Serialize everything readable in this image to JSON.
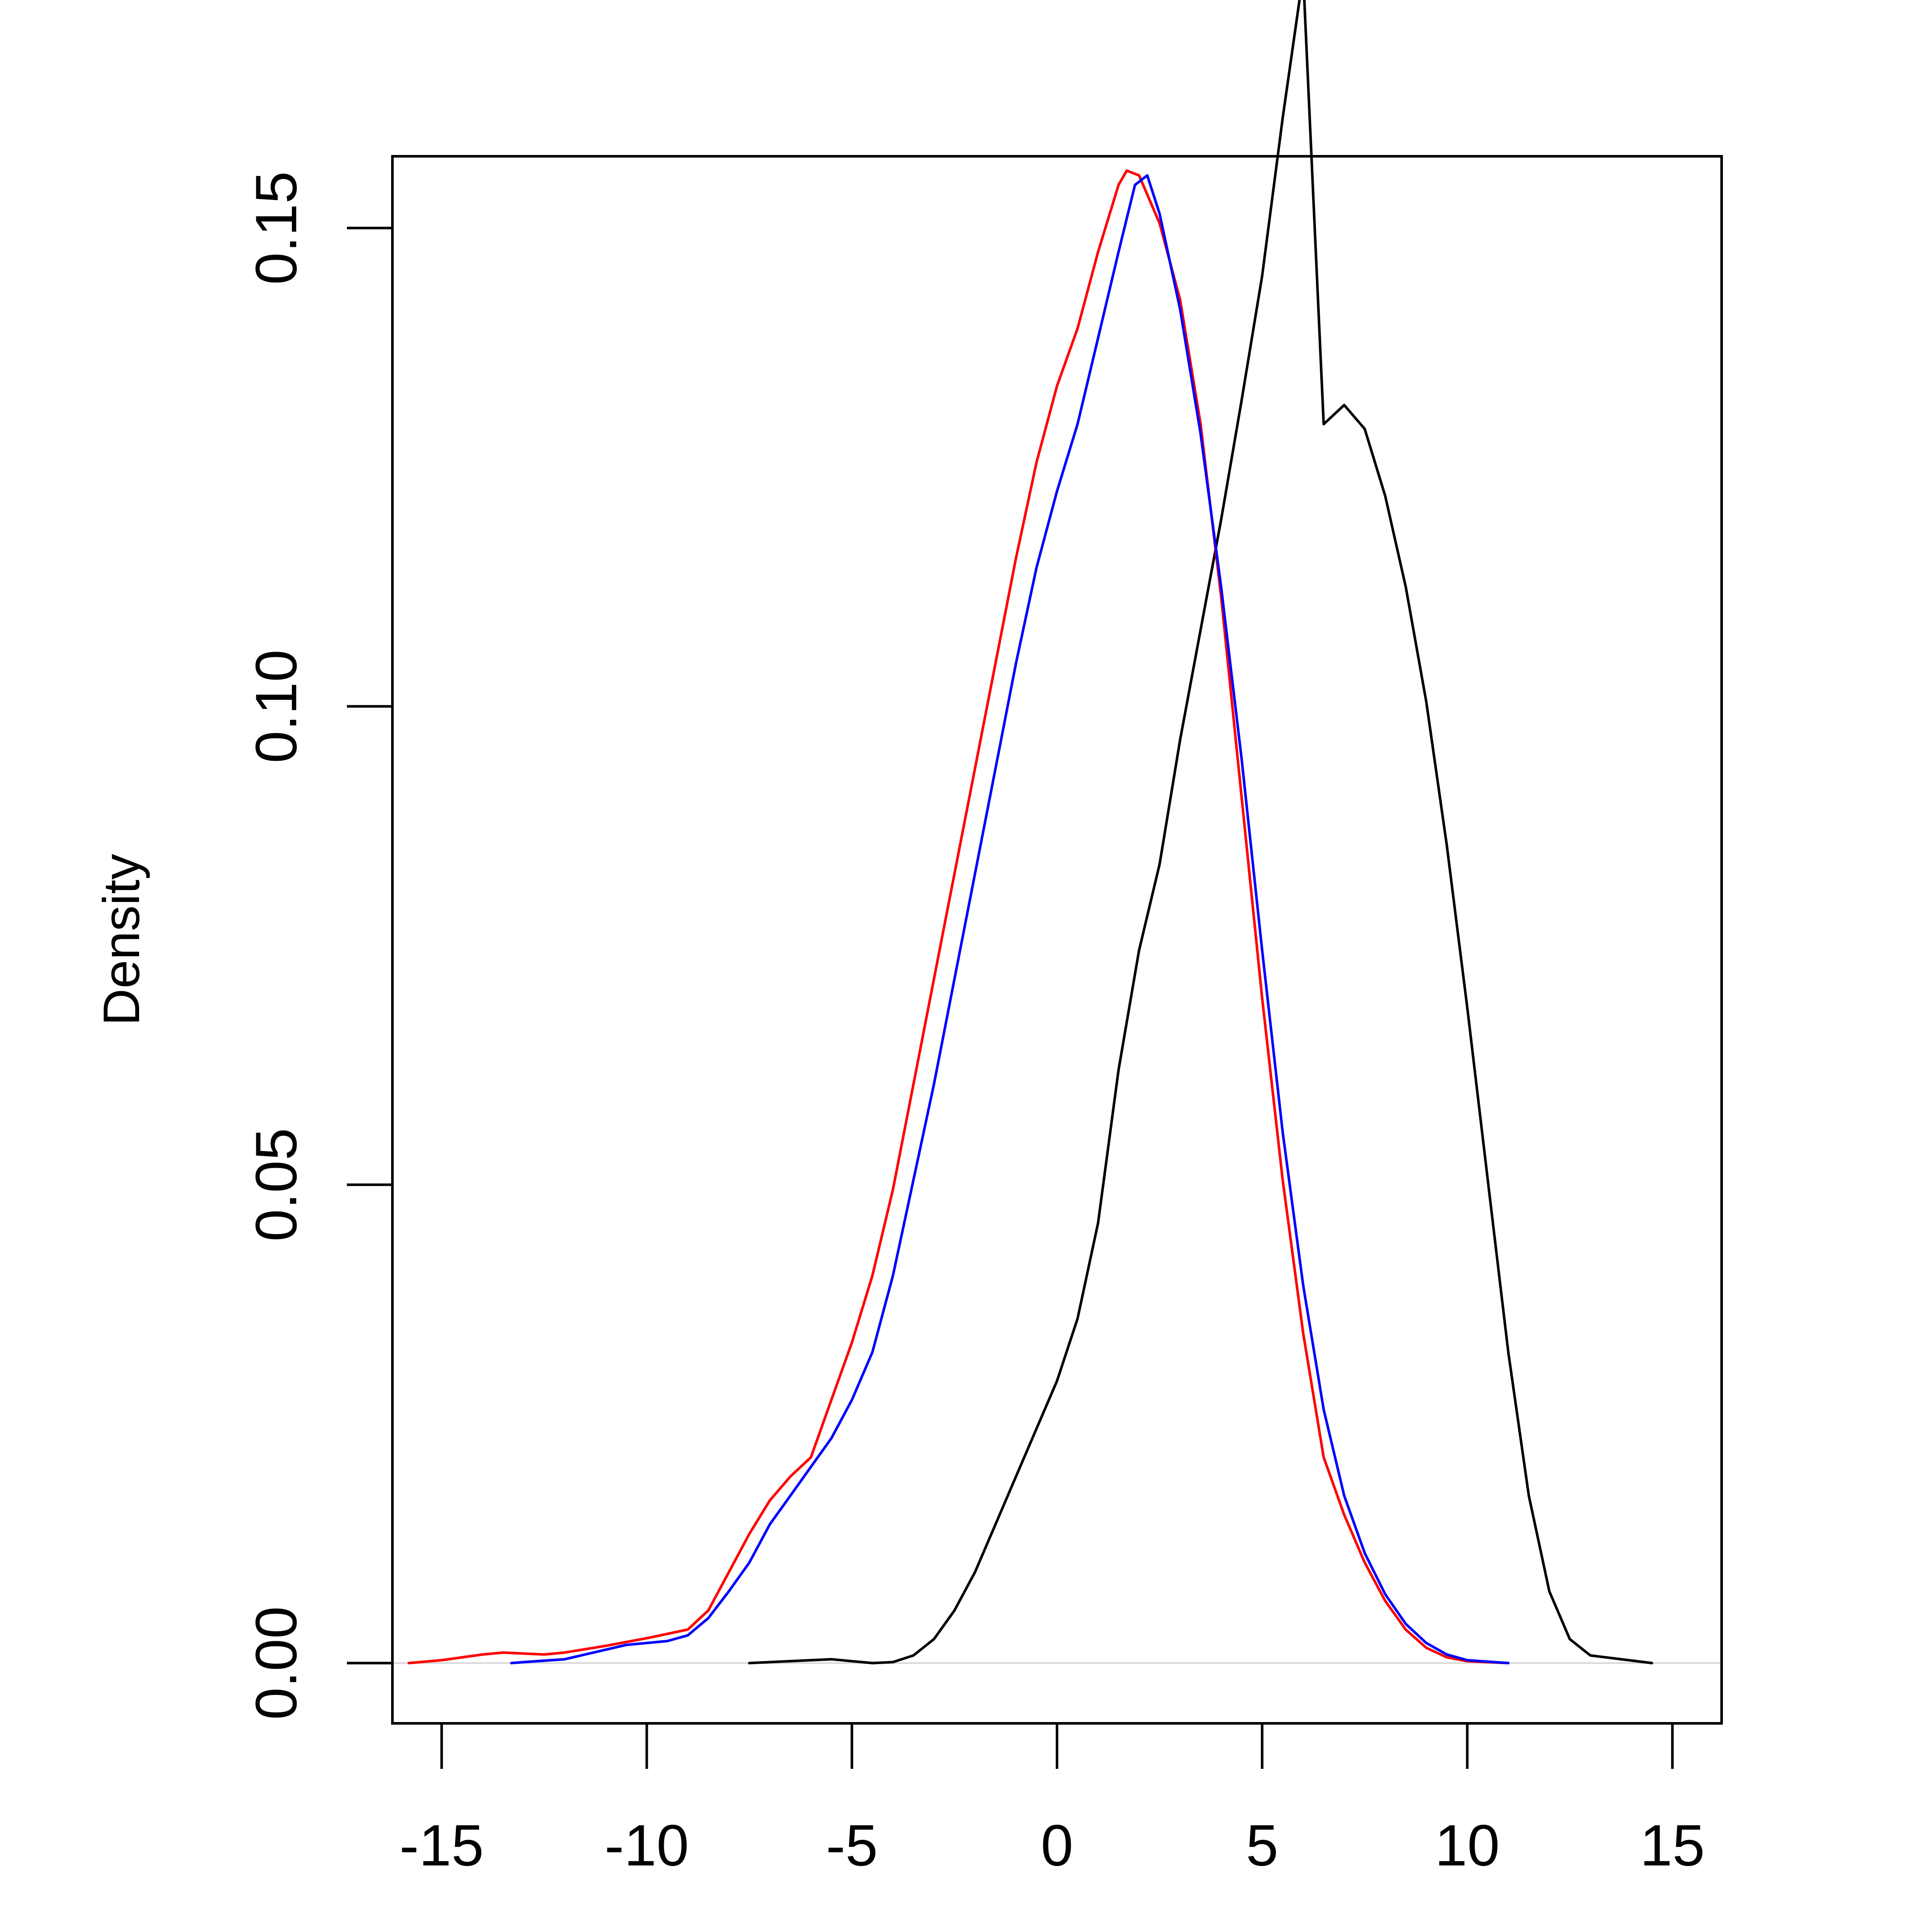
{
  "chart_data": {
    "type": "line",
    "title": "",
    "xlabel": "",
    "ylabel": "Density",
    "xlim": [
      -16.2,
      16.2
    ],
    "ylim": [
      -0.0063,
      0.1575
    ],
    "x_ticks": [
      -15,
      -10,
      -5,
      0,
      5,
      10,
      15
    ],
    "x_tick_labels": [
      "-15",
      "-10",
      "-5",
      "0",
      "5",
      "10",
      "15"
    ],
    "y_ticks": [
      0.0,
      0.05,
      0.1,
      0.15
    ],
    "y_tick_labels": [
      "0.00",
      "0.05",
      "0.10",
      "0.15"
    ],
    "grid": false,
    "legend": "none",
    "baseline": {
      "y": 0,
      "color": "#d9d9d9"
    },
    "series": [
      {
        "color": "#000000",
        "points": [
          [
            -7.5,
            0.0
          ],
          [
            -7.0,
            0.0001
          ],
          [
            -6.0,
            0.0003
          ],
          [
            -5.5,
            0.0004
          ],
          [
            -5.0,
            0.0002
          ],
          [
            -4.5,
            0.0
          ],
          [
            -4.0,
            0.0001
          ],
          [
            -3.5,
            0.0008
          ],
          [
            -3.0,
            0.0025
          ],
          [
            -2.5,
            0.0055
          ],
          [
            -2.0,
            0.0095
          ],
          [
            -1.5,
            0.0145
          ],
          [
            -1.0,
            0.0195
          ],
          [
            -0.5,
            0.0245
          ],
          [
            0.0,
            0.0295
          ],
          [
            0.5,
            0.036
          ],
          [
            1.0,
            0.046
          ],
          [
            1.5,
            0.062
          ],
          [
            2.0,
            0.0745
          ],
          [
            2.5,
            0.0835
          ],
          [
            3.0,
            0.0965
          ],
          [
            3.5,
            0.108
          ],
          [
            4.0,
            0.1195
          ],
          [
            4.5,
            0.132
          ],
          [
            5.0,
            0.145
          ],
          [
            5.5,
            0.1615
          ],
          [
            6.0,
            0.1765
          ],
          [
            6.5,
            0.1295
          ],
          [
            7.0,
            0.1315
          ],
          [
            7.5,
            0.129
          ],
          [
            8.0,
            0.122
          ],
          [
            8.5,
            0.1125
          ],
          [
            9.0,
            0.1005
          ],
          [
            9.5,
            0.0855
          ],
          [
            10.0,
            0.0685
          ],
          [
            10.5,
            0.0505
          ],
          [
            11.0,
            0.0325
          ],
          [
            11.5,
            0.0175
          ],
          [
            12.0,
            0.0075
          ],
          [
            12.5,
            0.0025
          ],
          [
            13.0,
            0.0008
          ],
          [
            14.5,
            0.0
          ]
        ]
      },
      {
        "color": "#ff0000",
        "points": [
          [
            -15.8,
            0.0
          ],
          [
            -15.0,
            0.0003
          ],
          [
            -14.0,
            0.0009
          ],
          [
            -13.5,
            0.0011
          ],
          [
            -12.5,
            0.0009
          ],
          [
            -12.0,
            0.0011
          ],
          [
            -11.0,
            0.0018
          ],
          [
            -10.0,
            0.0026
          ],
          [
            -9.0,
            0.0035
          ],
          [
            -8.5,
            0.0055
          ],
          [
            -8.0,
            0.0095
          ],
          [
            -7.5,
            0.0135
          ],
          [
            -7.0,
            0.017
          ],
          [
            -6.5,
            0.0195
          ],
          [
            -6.0,
            0.0215
          ],
          [
            -5.5,
            0.0275
          ],
          [
            -5.0,
            0.0335
          ],
          [
            -4.5,
            0.0405
          ],
          [
            -4.0,
            0.0495
          ],
          [
            -3.5,
            0.0605
          ],
          [
            -3.0,
            0.0715
          ],
          [
            -2.5,
            0.0825
          ],
          [
            -2.0,
            0.0935
          ],
          [
            -1.5,
            0.1045
          ],
          [
            -1.0,
            0.1155
          ],
          [
            -0.5,
            0.1255
          ],
          [
            0.0,
            0.1335
          ],
          [
            0.5,
            0.1395
          ],
          [
            1.0,
            0.1475
          ],
          [
            1.5,
            0.1545
          ],
          [
            1.7,
            0.156
          ],
          [
            2.0,
            0.1555
          ],
          [
            2.5,
            0.1505
          ],
          [
            3.0,
            0.1425
          ],
          [
            3.5,
            0.1295
          ],
          [
            4.0,
            0.1115
          ],
          [
            4.5,
            0.0905
          ],
          [
            5.0,
            0.0695
          ],
          [
            5.5,
            0.0505
          ],
          [
            6.0,
            0.0345
          ],
          [
            6.5,
            0.0215
          ],
          [
            7.0,
            0.0155
          ],
          [
            7.5,
            0.0105
          ],
          [
            8.0,
            0.0065
          ],
          [
            8.5,
            0.0035
          ],
          [
            9.0,
            0.0016
          ],
          [
            9.5,
            0.0006
          ],
          [
            10.0,
            0.0002
          ],
          [
            11.0,
            0.0
          ]
        ]
      },
      {
        "color": "#0000ff",
        "points": [
          [
            -13.3,
            0.0
          ],
          [
            -13.0,
            0.0001
          ],
          [
            -12.0,
            0.0004
          ],
          [
            -11.0,
            0.0014
          ],
          [
            -10.5,
            0.0019
          ],
          [
            -10.0,
            0.0021
          ],
          [
            -9.5,
            0.0023
          ],
          [
            -9.0,
            0.0029
          ],
          [
            -8.5,
            0.0047
          ],
          [
            -8.0,
            0.0075
          ],
          [
            -7.5,
            0.0105
          ],
          [
            -7.0,
            0.0145
          ],
          [
            -6.5,
            0.0175
          ],
          [
            -6.0,
            0.0205
          ],
          [
            -5.5,
            0.0235
          ],
          [
            -5.0,
            0.0275
          ],
          [
            -4.5,
            0.0325
          ],
          [
            -4.0,
            0.0405
          ],
          [
            -3.5,
            0.0505
          ],
          [
            -3.0,
            0.0605
          ],
          [
            -2.5,
            0.0715
          ],
          [
            -2.0,
            0.0825
          ],
          [
            -1.5,
            0.0935
          ],
          [
            -1.0,
            0.1045
          ],
          [
            -0.5,
            0.1145
          ],
          [
            0.0,
            0.1225
          ],
          [
            0.5,
            0.1295
          ],
          [
            1.0,
            0.1385
          ],
          [
            1.5,
            0.1475
          ],
          [
            1.9,
            0.1545
          ],
          [
            2.2,
            0.1555
          ],
          [
            2.5,
            0.1515
          ],
          [
            3.0,
            0.1415
          ],
          [
            3.5,
            0.1285
          ],
          [
            4.0,
            0.1125
          ],
          [
            4.5,
            0.0945
          ],
          [
            5.0,
            0.0745
          ],
          [
            5.5,
            0.0555
          ],
          [
            6.0,
            0.0395
          ],
          [
            6.5,
            0.0265
          ],
          [
            7.0,
            0.0175
          ],
          [
            7.5,
            0.0115
          ],
          [
            8.0,
            0.0072
          ],
          [
            8.5,
            0.0041
          ],
          [
            9.0,
            0.0021
          ],
          [
            9.5,
            0.0009
          ],
          [
            10.0,
            0.0003
          ],
          [
            11.0,
            0.0
          ]
        ]
      }
    ]
  }
}
